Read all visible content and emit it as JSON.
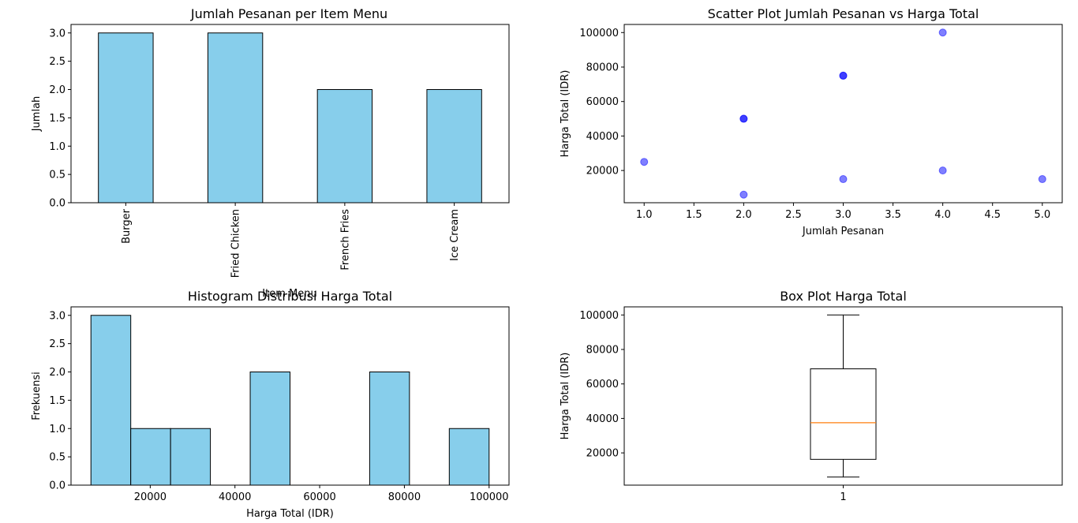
{
  "chart_data": [
    {
      "type": "bar",
      "title": "Jumlah Pesanan per Item Menu",
      "xlabel": "Item Menu",
      "ylabel": "Jumlah",
      "categories": [
        "Burger",
        "Fried Chicken",
        "French Fries",
        "Ice Cream"
      ],
      "values": [
        3,
        3,
        2,
        2
      ],
      "ylim": [
        0,
        3.15
      ],
      "yticks": [
        "0.0",
        "0.5",
        "1.0",
        "1.5",
        "2.0",
        "2.5",
        "3.0"
      ],
      "grid": false,
      "bar_color": "#87CEEB",
      "edge_color": "#000000"
    },
    {
      "type": "scatter",
      "title": "Scatter Plot Jumlah Pesanan vs Harga Total",
      "xlabel": "Jumlah Pesanan",
      "ylabel": "Harga Total (IDR)",
      "points": [
        {
          "x": 1,
          "y": 25000
        },
        {
          "x": 2,
          "y": 50000
        },
        {
          "x": 2,
          "y": 50000
        },
        {
          "x": 2,
          "y": 6000
        },
        {
          "x": 3,
          "y": 75000
        },
        {
          "x": 3,
          "y": 75000
        },
        {
          "x": 3,
          "y": 15000
        },
        {
          "x": 4,
          "y": 100000
        },
        {
          "x": 4,
          "y": 20000
        },
        {
          "x": 5,
          "y": 15000
        }
      ],
      "xlim": [
        0.8,
        5.2
      ],
      "ylim": [
        1300,
        104700
      ],
      "xticks": [
        "1.0",
        "1.5",
        "2.0",
        "2.5",
        "3.0",
        "3.5",
        "4.0",
        "4.5",
        "5.0"
      ],
      "yticks": [
        "20000",
        "40000",
        "60000",
        "80000",
        "100000"
      ],
      "grid": false,
      "point_color": "#0000FF",
      "alpha": 0.5
    },
    {
      "type": "histogram",
      "title": "Histogram Distribusi Harga Total",
      "xlabel": "Harga Total (IDR)",
      "ylabel": "Frekuensi",
      "bins": [
        {
          "x0": 6000,
          "x1": 15400,
          "count": 3
        },
        {
          "x0": 15400,
          "x1": 24800,
          "count": 1
        },
        {
          "x0": 24800,
          "x1": 34200,
          "count": 1
        },
        {
          "x0": 34200,
          "x1": 43600,
          "count": 0
        },
        {
          "x0": 43600,
          "x1": 53000,
          "count": 2
        },
        {
          "x0": 53000,
          "x1": 62400,
          "count": 0
        },
        {
          "x0": 62400,
          "x1": 71800,
          "count": 0
        },
        {
          "x0": 71800,
          "x1": 81200,
          "count": 2
        },
        {
          "x0": 81200,
          "x1": 90600,
          "count": 0
        },
        {
          "x0": 90600,
          "x1": 100000,
          "count": 1
        }
      ],
      "xlim": [
        1300,
        104700
      ],
      "ylim": [
        0,
        3.15
      ],
      "xticks": [
        "20000",
        "40000",
        "60000",
        "80000",
        "100000"
      ],
      "yticks": [
        "0.0",
        "0.5",
        "1.0",
        "1.5",
        "2.0",
        "2.5",
        "3.0"
      ],
      "grid": false,
      "bar_color": "#87CEEB",
      "edge_color": "#000000"
    },
    {
      "type": "box",
      "title": "Box Plot Harga Total",
      "ylabel": "Harga Total (IDR)",
      "category": "1",
      "whisker_low": 6000,
      "q1": 16250,
      "median": 37500,
      "q3": 68750,
      "whisker_high": 100000,
      "ylim": [
        1300,
        104700
      ],
      "yticks": [
        "20000",
        "40000",
        "60000",
        "80000",
        "100000"
      ],
      "grid": false,
      "median_color": "#FF7F0E"
    }
  ]
}
